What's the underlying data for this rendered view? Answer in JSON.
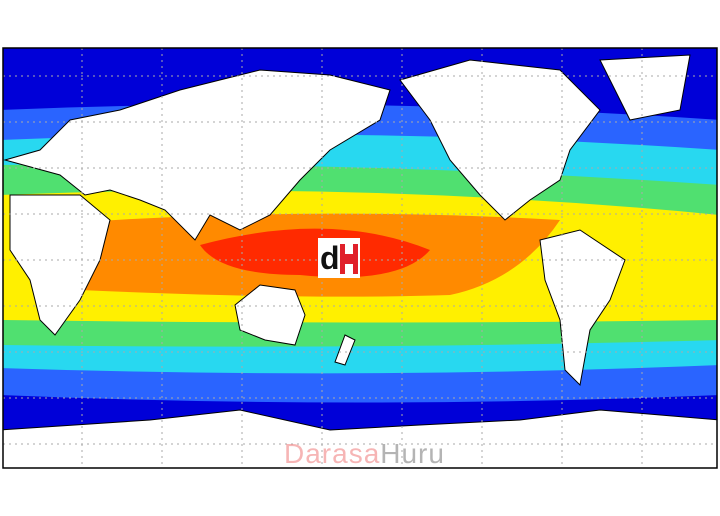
{
  "map": {
    "type": "global sea surface temperature",
    "colors": {
      "cold": "#0000d8",
      "cool": "#2a64ff",
      "cyan": "#28d8f0",
      "green": "#50e070",
      "yellow": "#fff000",
      "orange": "#ff8a00",
      "warm": "#ff2a00",
      "land": "#ffffff",
      "grid": "#aaaaaa"
    }
  },
  "logo": {
    "text": "dH"
  },
  "watermark": {
    "part1": "Darasa",
    "part2": "Huru"
  }
}
